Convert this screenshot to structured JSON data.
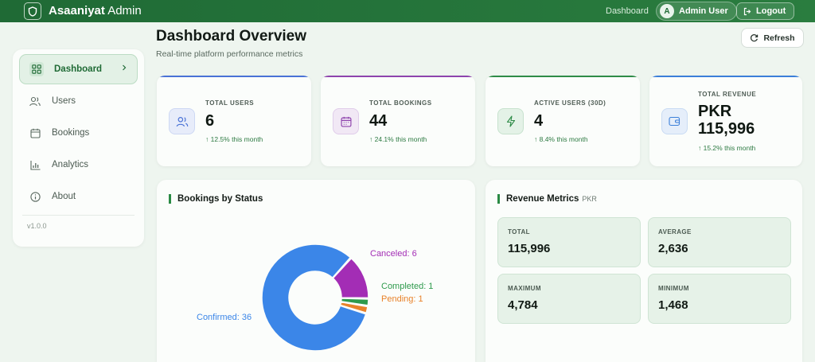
{
  "header": {
    "brand_bold": "Asaaniyat",
    "brand_rest": " Admin",
    "nav_link": "Dashboard",
    "user_initial": "A",
    "user_name": "Admin User",
    "logout_label": "Logout"
  },
  "sidebar": {
    "items": [
      {
        "label": "Dashboard",
        "icon": "grid-icon",
        "active": true
      },
      {
        "label": "Users",
        "icon": "users-icon"
      },
      {
        "label": "Bookings",
        "icon": "calendar-icon"
      },
      {
        "label": "Analytics",
        "icon": "bar-chart-icon"
      },
      {
        "label": "About",
        "icon": "info-icon"
      }
    ],
    "version": "v1.0.0"
  },
  "page": {
    "title": "Dashboard Overview",
    "subtitle": "Real-time platform performance metrics",
    "refresh_label": "Refresh"
  },
  "stats": [
    {
      "label": "TOTAL USERS",
      "value": "6",
      "trend": "↑ 12.5% this month",
      "icon": "users-icon",
      "accent": "#4a72d6"
    },
    {
      "label": "TOTAL BOOKINGS",
      "value": "44",
      "trend": "↑ 24.1% this month",
      "icon": "calendar-icon",
      "accent": "#8e44ad"
    },
    {
      "label": "ACTIVE USERS (30D)",
      "value": "4",
      "trend": "↑ 8.4% this month",
      "icon": "zap-icon",
      "accent": "#2e8b47"
    },
    {
      "label": "TOTAL REVENUE",
      "value": "PKR 115,996",
      "trend": "↑ 15.2% this month",
      "icon": "wallet-icon",
      "accent": "#3b7fd9"
    }
  ],
  "bookings_panel": {
    "title": "Bookings by Status"
  },
  "chart_data": {
    "type": "pie",
    "title": "Bookings by Status",
    "categories": [
      "Confirmed",
      "Canceled",
      "Completed",
      "Pending"
    ],
    "values": [
      36,
      6,
      1,
      1
    ],
    "colors": [
      "#3b86e8",
      "#a32db5",
      "#2e9a4c",
      "#e8822a"
    ],
    "labels": [
      "Confirmed: 36",
      "Canceled: 6",
      "Completed: 1",
      "Pending: 1"
    ],
    "donut": true
  },
  "revenue_panel": {
    "title": "Revenue Metrics",
    "unit": "PKR",
    "metrics": [
      {
        "label": "TOTAL",
        "value": "115,996"
      },
      {
        "label": "AVERAGE",
        "value": "2,636"
      },
      {
        "label": "MAXIMUM",
        "value": "4,784"
      },
      {
        "label": "MINIMUM",
        "value": "1,468"
      }
    ]
  }
}
